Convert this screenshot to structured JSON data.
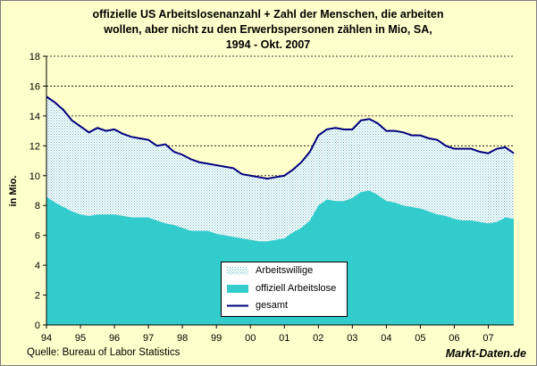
{
  "title": {
    "line1": "offizielle US  Arbeitslosenanzahl + Zahl der Menschen, die arbeiten",
    "line2": "wollen, aber nicht zu den Erwerbspersonen zählen in Mio, SA,",
    "line3": "1994 - Okt. 2007"
  },
  "source": "Quelle: Bureau of Labor Statistics",
  "brand": "Markt-Daten.de",
  "colors": {
    "plot_background": "#ffffcc",
    "official": "#33cccc",
    "willing_pattern": "#5fb8c4",
    "total_line": "#000080",
    "grid": "#000000"
  },
  "chart_data": {
    "type": "area",
    "title": "offizielle US  Arbeitslosenanzahl + Zahl der Menschen, die arbeiten wollen, aber nicht zu den Erwerbspersonen zählen in Mio, SA, 1994 - Okt. 2007",
    "xlabel": "",
    "ylabel": "in Mio.",
    "ylim": [
      0,
      18
    ],
    "yticks": [
      0,
      2,
      4,
      6,
      8,
      10,
      12,
      14,
      16,
      18
    ],
    "xlim": [
      1994.0,
      2007.75
    ],
    "xticks": [
      "94",
      "95",
      "96",
      "97",
      "98",
      "99",
      "00",
      "01",
      "02",
      "03",
      "04",
      "05",
      "06",
      "07"
    ],
    "grid": "horizontal dashed",
    "legend_position": "bottom-center",
    "x": [
      1994.0,
      1994.25,
      1994.5,
      1994.75,
      1995.0,
      1995.25,
      1995.5,
      1995.75,
      1996.0,
      1996.25,
      1996.5,
      1996.75,
      1997.0,
      1997.25,
      1997.5,
      1997.75,
      1998.0,
      1998.25,
      1998.5,
      1998.75,
      1999.0,
      1999.25,
      1999.5,
      1999.75,
      2000.0,
      2000.25,
      2000.5,
      2000.75,
      2001.0,
      2001.25,
      2001.5,
      2001.75,
      2002.0,
      2002.25,
      2002.5,
      2002.75,
      2003.0,
      2003.25,
      2003.5,
      2003.75,
      2004.0,
      2004.25,
      2004.5,
      2004.75,
      2005.0,
      2005.25,
      2005.5,
      2005.75,
      2006.0,
      2006.25,
      2006.5,
      2006.75,
      2007.0,
      2007.25,
      2007.5,
      2007.75
    ],
    "series": [
      {
        "name": "Arbeitswillige",
        "style": "dotted pattern",
        "values": [
          6.7,
          6.7,
          6.5,
          6.1,
          5.9,
          5.6,
          5.8,
          5.6,
          5.7,
          5.5,
          5.4,
          5.3,
          5.2,
          5.0,
          5.3,
          4.9,
          4.9,
          4.8,
          4.6,
          4.5,
          4.6,
          4.6,
          4.6,
          4.3,
          4.3,
          4.3,
          4.2,
          4.2,
          4.2,
          4.2,
          4.4,
          4.6,
          4.7,
          4.7,
          4.9,
          4.8,
          4.6,
          4.8,
          4.8,
          4.8,
          4.7,
          4.8,
          4.9,
          4.8,
          4.9,
          4.9,
          5.0,
          4.7,
          4.7,
          4.8,
          4.8,
          4.7,
          4.7,
          4.9,
          4.7,
          4.4
        ]
      },
      {
        "name": "offiziell Arbeitslose",
        "style": "filled area",
        "values": [
          8.6,
          8.2,
          7.9,
          7.6,
          7.4,
          7.3,
          7.4,
          7.4,
          7.4,
          7.3,
          7.2,
          7.2,
          7.2,
          7.0,
          6.8,
          6.7,
          6.5,
          6.3,
          6.3,
          6.3,
          6.1,
          6.0,
          5.9,
          5.8,
          5.7,
          5.6,
          5.6,
          5.7,
          5.8,
          6.2,
          6.5,
          7.0,
          8.0,
          8.4,
          8.3,
          8.3,
          8.5,
          8.9,
          9.0,
          8.7,
          8.3,
          8.2,
          8.0,
          7.9,
          7.8,
          7.6,
          7.4,
          7.3,
          7.1,
          7.0,
          7.0,
          6.9,
          6.8,
          6.9,
          7.2,
          7.1
        ]
      },
      {
        "name": "gesamt",
        "style": "line",
        "values": [
          15.3,
          14.9,
          14.4,
          13.7,
          13.3,
          12.9,
          13.2,
          13.0,
          13.1,
          12.8,
          12.6,
          12.5,
          12.4,
          12.0,
          12.1,
          11.6,
          11.4,
          11.1,
          10.9,
          10.8,
          10.7,
          10.6,
          10.5,
          10.1,
          10.0,
          9.9,
          9.8,
          9.9,
          10.0,
          10.4,
          10.9,
          11.6,
          12.7,
          13.1,
          13.2,
          13.1,
          13.1,
          13.7,
          13.8,
          13.5,
          13.0,
          13.0,
          12.9,
          12.7,
          12.7,
          12.5,
          12.4,
          12.0,
          11.8,
          11.8,
          11.8,
          11.6,
          11.5,
          11.8,
          11.9,
          11.5
        ]
      }
    ]
  }
}
